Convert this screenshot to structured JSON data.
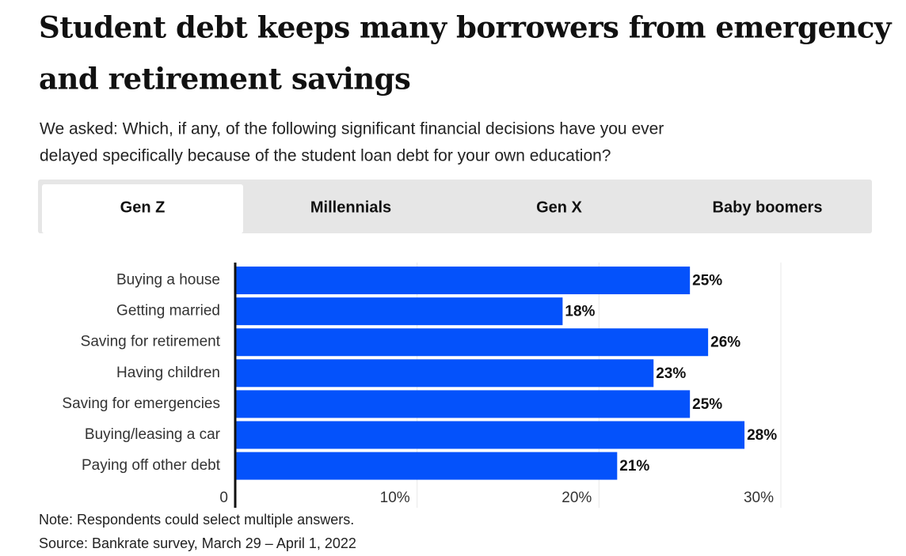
{
  "chart_data": {
    "type": "bar",
    "orientation": "horizontal",
    "title_lines": [
      "Student debt keeps many borrowers from emergency",
      "and retirement savings"
    ],
    "subtitle_lines": [
      "We asked: Which, if any, of the following significant financial decisions have you ever",
      "delayed specifically because of the student loan debt for your own education?"
    ],
    "tabs": [
      "Gen Z",
      "Millennials",
      "Gen X",
      "Baby boomers"
    ],
    "active_tab": 0,
    "categories": [
      "Buying a house",
      "Getting married",
      "Saving for retirement",
      "Having children",
      "Saving for emergencies",
      "Buying/leasing a car",
      "Paying off other debt"
    ],
    "values": [
      25,
      18,
      26,
      23,
      25,
      28,
      21
    ],
    "value_labels": [
      "25%",
      "18%",
      "26%",
      "23%",
      "25%",
      "28%",
      "21%"
    ],
    "color": "#0452fb",
    "xlim": [
      0,
      30
    ],
    "xticks": [
      0,
      {
        "value": 10,
        "label": "10%"
      },
      {
        "value": 20,
        "label": "20%"
      },
      {
        "value": 30,
        "label": "30%"
      }
    ],
    "grid": true,
    "note": "Note: Respondents could select multiple answers.",
    "source": "Source: Bankrate survey, March 29 – April 1, 2022"
  }
}
